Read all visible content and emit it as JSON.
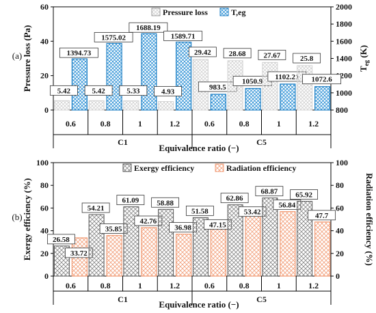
{
  "chart_data": [
    {
      "panel_label": "(a)",
      "type": "bar",
      "categories": [
        "0.6",
        "0.8",
        "1",
        "1.2",
        "0.6",
        "0.8",
        "1",
        "1.2"
      ],
      "groups": [
        "C1",
        "C5"
      ],
      "xlabel": "Equivalence ratio (−)",
      "ylabel_left": "Pressure loss (Pa)",
      "ylabel_right": "T",
      "ylabel_right_sub": "eg",
      "ylabel_right_unit": "(K)",
      "ylim_left": [
        0,
        60
      ],
      "yticks_left": [
        "0",
        "20",
        "40",
        "60"
      ],
      "ylim_right": [
        800,
        2000
      ],
      "yticks_right": [
        "800",
        "1000",
        "1200",
        "1400",
        "1600",
        "1800",
        "2000"
      ],
      "legend_position": "top-right",
      "series": [
        {
          "name": "Pressure loss",
          "axis": "left",
          "color": "#c8c8c8",
          "values": [
            5.42,
            5.42,
            5.33,
            4.93,
            29.42,
            28.68,
            27.67,
            25.8
          ],
          "labels": [
            "5.42",
            "5.42",
            "5.33",
            "4.93",
            "29.42",
            "28.68",
            "27.67",
            "25.8"
          ]
        },
        {
          "name": "T,eg",
          "axis": "right",
          "color": "#1e90d6",
          "values": [
            1394.73,
            1575.02,
            1688.19,
            1589.71,
            983.5,
            1050.9,
            1102.21,
            1072.6
          ],
          "labels": [
            "1394.73",
            "1575.02",
            "1688.19",
            "1589.71",
            "983.5",
            "1050.9",
            "1102.21",
            "1072.6"
          ]
        }
      ]
    },
    {
      "panel_label": "(b)",
      "type": "bar",
      "categories": [
        "0.6",
        "0.8",
        "1",
        "1.2",
        "0.6",
        "0.8",
        "1",
        "1.2"
      ],
      "groups": [
        "C1",
        "C5"
      ],
      "xlabel": "Equivalence ratio (−)",
      "ylabel_left": "Exergy efficiency (%)",
      "ylabel_right": "Radiation efficiency (%)",
      "ylim_left": [
        0,
        100
      ],
      "yticks_left": [
        "0",
        "20",
        "40",
        "60",
        "80",
        "100"
      ],
      "ylim_right": [
        0,
        100
      ],
      "yticks_right": [
        "0",
        "20",
        "40",
        "60",
        "80",
        "100"
      ],
      "legend_position": "top",
      "series": [
        {
          "name": "Exergy efficiency",
          "axis": "left",
          "color": "#777777",
          "values": [
            26.58,
            54.21,
            61.09,
            58.88,
            51.58,
            62.86,
            68.87,
            65.92
          ],
          "labels": [
            "26.58",
            "54.21",
            "61.09",
            "58.88",
            "51.58",
            "62.86",
            "68.87",
            "65.92"
          ]
        },
        {
          "name": "Radiation efficiency",
          "axis": "right",
          "color": "#f4a07a",
          "values": [
            33.72,
            35.85,
            42.76,
            36.98,
            47.15,
            53.42,
            56.84,
            47.7
          ],
          "labels": [
            "33.72",
            "35.85",
            "42.76",
            "36.98",
            "47.15",
            "53.42",
            "56.84",
            "47.7"
          ]
        }
      ]
    }
  ]
}
